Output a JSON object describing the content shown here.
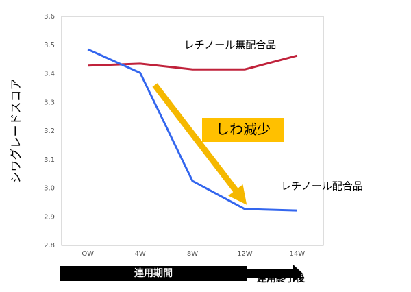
{
  "chart_data": {
    "type": "line",
    "y_label": "シワグレードスコア",
    "categories": [
      "OW",
      "4W",
      "8W",
      "12W",
      "14W"
    ],
    "series": [
      {
        "name": "レチノール無配合品",
        "color": "#c0223b",
        "values": [
          3.428,
          3.435,
          3.415,
          3.415,
          3.463
        ]
      },
      {
        "name": "レチノール配合品",
        "color": "#3366ee",
        "values": [
          3.485,
          3.403,
          3.025,
          2.927,
          2.922
        ]
      }
    ],
    "ylim": [
      2.8,
      3.6
    ],
    "yticks": [
      2.8,
      2.9,
      {
        "value": 3,
        "label": "3.0"
      },
      3.1,
      3.2,
      3.3,
      3.4,
      3.5,
      3.6
    ],
    "grid": false,
    "annotations": {
      "decrease": "しわ減少",
      "period": "連用期間",
      "after": "連用終了後"
    }
  }
}
